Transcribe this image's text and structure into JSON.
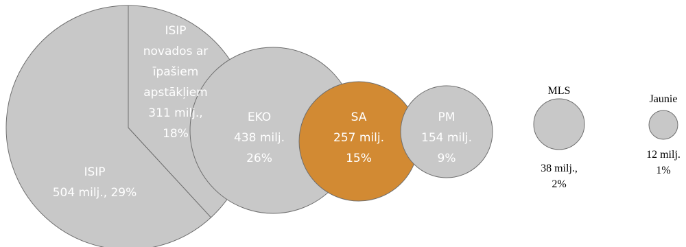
{
  "chart_data": {
    "type": "bubble",
    "unit": "milj.",
    "items": [
      {
        "name": "ISIP",
        "value": 504,
        "percent": 29,
        "lines": [
          "ISIP",
          "504 milj., 29%"
        ],
        "color": "#c8c8c8"
      },
      {
        "name": "ISIP novados ar īpašiem apstākļiem",
        "value": 311,
        "percent": 18,
        "lines": [
          "ISIP",
          "novados ar",
          "īpašiem",
          "apstākļiem",
          "311 milj.,",
          "18%"
        ],
        "color": "#c8c8c8"
      },
      {
        "name": "EKO",
        "value": 438,
        "percent": 26,
        "lines": [
          "EKO",
          "438 milj.",
          "26%"
        ],
        "color": "#c8c8c8"
      },
      {
        "name": "SA",
        "value": 257,
        "percent": 15,
        "lines": [
          "SA",
          "257 milj.",
          "15%"
        ],
        "color": "#d28a33"
      },
      {
        "name": "PM",
        "value": 154,
        "percent": 9,
        "lines": [
          "PM",
          "154 milj.",
          "9%"
        ],
        "color": "#c8c8c8"
      },
      {
        "name": "MLS",
        "value": 38,
        "percent": 2,
        "lines": [
          "MLS",
          "38 milj.,",
          "2%"
        ],
        "color": "#c8c8c8"
      },
      {
        "name": "Jaunie",
        "value": 12,
        "percent": 1,
        "lines": [
          "Jaunie",
          "12 milj.",
          "1%"
        ],
        "color": "#c8c8c8"
      }
    ]
  }
}
